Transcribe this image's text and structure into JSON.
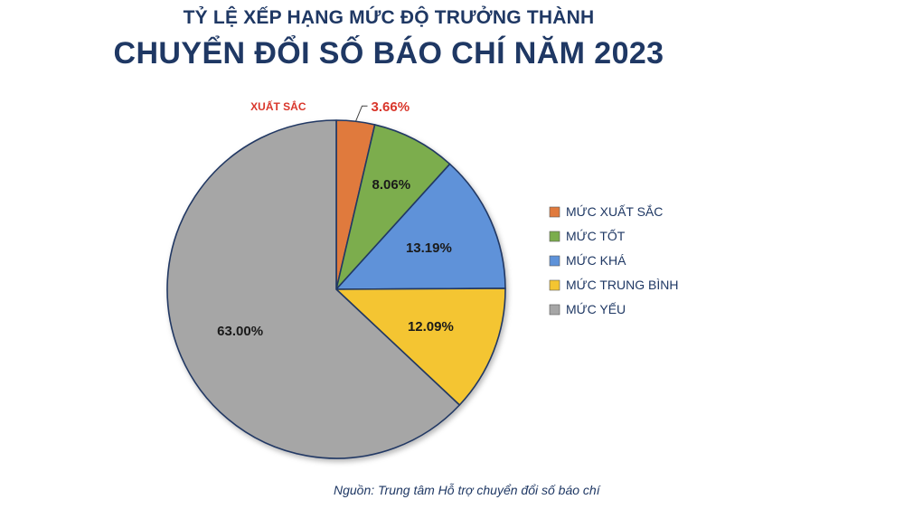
{
  "header": {
    "title": "TỶ LỆ XẾP HẠNG MỨC ĐỘ TRƯỞNG THÀNH",
    "subtitle": "CHUYỂN ĐỔI SỐ BÁO CHÍ NĂM 2023"
  },
  "source": "Nguồn: Trung tâm Hỗ trợ chuyển đổi số báo chí",
  "chart_data": {
    "type": "pie",
    "title": "TỶ LỆ XẾP HẠNG MỨC ĐỘ TRƯỞNG THÀNH CHUYỂN ĐỔI SỐ BÁO CHÍ NĂM 2023",
    "legend_position": "right",
    "callout_label": "XUẤT SẮC",
    "slices": [
      {
        "name": "MỨC XUẤT SẮC",
        "value": 3.66,
        "label": "3.66%",
        "color": "#e07a3d"
      },
      {
        "name": "MỨC TỐT",
        "value": 8.06,
        "label": "8.06%",
        "color": "#7bad4d"
      },
      {
        "name": "MỨC KHÁ",
        "value": 13.19,
        "label": "13.19%",
        "color": "#5e92d9"
      },
      {
        "name": "MỨC TRUNG BÌNH",
        "value": 12.09,
        "label": "12.09%",
        "color": "#f4c531"
      },
      {
        "name": "MỨC YẾU",
        "value": 63.0,
        "label": "63.00%",
        "color": "#a6a6a6"
      }
    ],
    "colors": {
      "label_text": "#1a1a1a",
      "callout_text": "#d9362b",
      "legend_text": "#1f3864"
    }
  }
}
